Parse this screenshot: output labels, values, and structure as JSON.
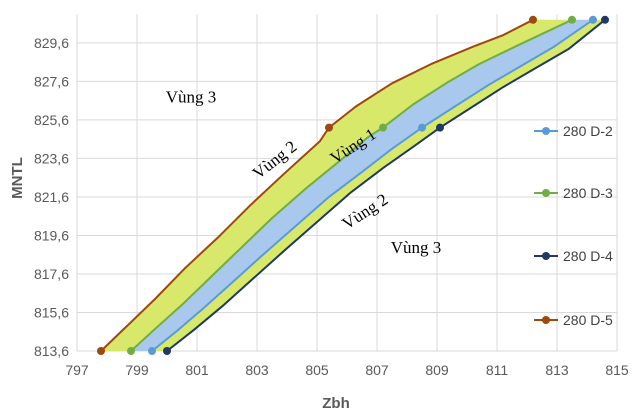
{
  "chart_data": {
    "type": "line",
    "xlabel": "Zbh",
    "ylabel": "MNTL",
    "xlim": [
      797,
      815
    ],
    "ylim": [
      813.6,
      831.1
    ],
    "x_ticks": [
      "797",
      "799",
      "801",
      "803",
      "805",
      "807",
      "809",
      "811",
      "813",
      "815"
    ],
    "y_ticks": [
      "813,6",
      "815,6",
      "817,6",
      "819,6",
      "821,6",
      "823,6",
      "825,6",
      "827,6",
      "829,6"
    ],
    "grid": true,
    "legend_position": "right",
    "series": [
      {
        "name": "280 D-2",
        "color": "#5B9BD5",
        "x": [
          799.5,
          800.3,
          801.2,
          802.2,
          803.2,
          804.3,
          805.4,
          806.5,
          807.5,
          808.5,
          809.6,
          810.7,
          811.8,
          812.9,
          814.2
        ],
        "y": [
          813.6,
          814.6,
          815.8,
          817.2,
          818.6,
          820.1,
          821.6,
          822.9,
          824.1,
          825.2,
          826.3,
          827.4,
          828.4,
          829.4,
          830.8
        ],
        "markers": [
          [
            799.5,
            813.6
          ],
          [
            808.5,
            825.2
          ],
          [
            814.2,
            830.8
          ]
        ]
      },
      {
        "name": "280 D-3",
        "color": "#70AD47",
        "x": [
          798.8,
          799.5,
          800.5,
          801.5,
          802.5,
          803.5,
          804.6,
          805.7,
          806.7,
          807.2,
          808.2,
          809.3,
          810.4,
          811.6,
          813.5
        ],
        "y": [
          813.6,
          814.6,
          816.0,
          817.5,
          819.0,
          820.5,
          822.0,
          823.4,
          824.7,
          825.2,
          826.4,
          827.5,
          828.5,
          829.4,
          830.8
        ],
        "markers": [
          [
            798.8,
            813.6
          ],
          [
            807.2,
            825.2
          ],
          [
            813.5,
            830.8
          ]
        ]
      },
      {
        "name": "280 D-4",
        "color": "#1F3864",
        "x": [
          800.0,
          800.9,
          801.9,
          802.9,
          803.9,
          805.0,
          806.1,
          807.2,
          808.2,
          809.1,
          810.1,
          811.2,
          812.3,
          813.4,
          814.6
        ],
        "y": [
          813.6,
          814.7,
          816.0,
          817.4,
          818.8,
          820.3,
          821.8,
          823.1,
          824.2,
          825.2,
          826.2,
          827.3,
          828.3,
          829.3,
          830.8
        ],
        "markers": [
          [
            800.0,
            813.6
          ],
          [
            809.1,
            825.2
          ],
          [
            814.6,
            830.8
          ]
        ]
      },
      {
        "name": "280 D-5",
        "color": "#9E480E",
        "x": [
          797.8,
          798.6,
          799.6,
          800.6,
          801.7,
          802.8,
          803.9,
          805.1,
          805.4,
          806.3,
          807.5,
          808.8,
          810.2,
          811.2,
          812.2
        ],
        "y": [
          813.6,
          814.8,
          816.3,
          817.9,
          819.5,
          821.2,
          822.8,
          824.5,
          825.2,
          826.3,
          827.5,
          828.5,
          829.4,
          830.0,
          830.8
        ],
        "markers": [
          [
            797.8,
            813.6
          ],
          [
            805.4,
            825.2
          ],
          [
            812.2,
            830.8
          ]
        ]
      }
    ],
    "bands": [
      {
        "between": [
          "280 D-5",
          "280 D-3"
        ],
        "color": "#D7E86A"
      },
      {
        "between": [
          "280 D-3",
          "280 D-2"
        ],
        "color": "#A9C8EE"
      },
      {
        "between": [
          "280 D-2",
          "280 D-4"
        ],
        "color": "#D7E86A"
      }
    ],
    "annotations": [
      {
        "text": "Vùng 3",
        "x": 800.8,
        "y": 826.5,
        "rotate": 0
      },
      {
        "text": "Vùng 2",
        "x": 803.7,
        "y": 823.3,
        "rotate": -38
      },
      {
        "text": "Vùng 1",
        "x": 806.3,
        "y": 824.0,
        "rotate": -33
      },
      {
        "text": "Vùng 2",
        "x": 806.7,
        "y": 820.6,
        "rotate": -33
      },
      {
        "text": "Vùng 3",
        "x": 808.3,
        "y": 818.7,
        "rotate": 0
      }
    ]
  }
}
